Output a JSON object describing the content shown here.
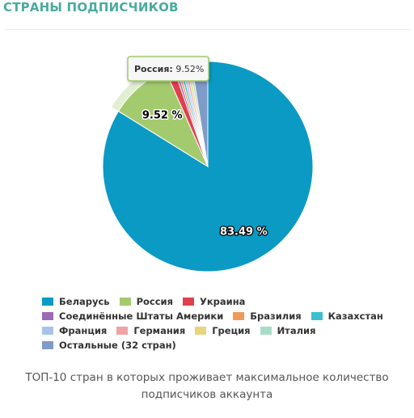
{
  "header": {
    "title": "СТРАНЫ ПОДПИСЧИКОВ"
  },
  "chart_data": {
    "type": "pie",
    "title": "",
    "slices": [
      {
        "label": "Беларусь",
        "value": 83.49,
        "color": "#0a9ac4",
        "data_label": "83.49 %"
      },
      {
        "label": "Россия",
        "value": 9.52,
        "color": "#a3cb6e",
        "data_label": "9.52 %"
      },
      {
        "label": "Украина",
        "value": 1.3,
        "color": "#e0404e"
      },
      {
        "label": "Соединённые Штаты Америки",
        "value": 0.4,
        "color": "#9b6ab5"
      },
      {
        "label": "Бразилия",
        "value": 0.4,
        "color": "#f09a5a"
      },
      {
        "label": "Казахстан",
        "value": 0.4,
        "color": "#3cbfd1"
      },
      {
        "label": "Франция",
        "value": 0.4,
        "color": "#a8c3ea"
      },
      {
        "label": "Германия",
        "value": 0.4,
        "color": "#eea3a5"
      },
      {
        "label": "Греция",
        "value": 0.4,
        "color": "#e8d47c"
      },
      {
        "label": "Италия",
        "value": 0.4,
        "color": "#a9dcc6"
      },
      {
        "label": "Остальные (32 стран)",
        "value": 2.49,
        "color": "#7f9bc7"
      }
    ],
    "highlighted": "Россия",
    "legend_position": "bottom",
    "tooltip": {
      "label": "Россия",
      "value": "9.52%"
    }
  },
  "caption": {
    "line1": "ТОП-10 стран в которых проживает максимальное количество",
    "line2": "подписчиков аккаунта"
  }
}
